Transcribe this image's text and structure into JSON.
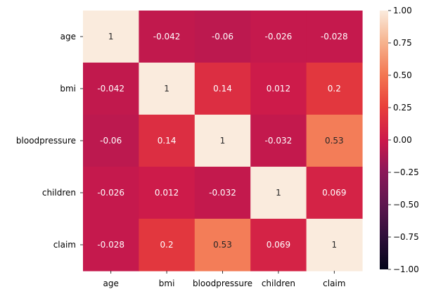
{
  "chart_data": {
    "type": "heatmap",
    "title": "",
    "xlabel": "",
    "ylabel": "",
    "x_categories": [
      "age",
      "bmi",
      "bloodpressure",
      "children",
      "claim"
    ],
    "y_categories": [
      "age",
      "bmi",
      "bloodpressure",
      "children",
      "claim"
    ],
    "values": [
      [
        1,
        -0.042,
        -0.06,
        -0.026,
        -0.028
      ],
      [
        -0.042,
        1,
        0.14,
        0.012,
        0.2
      ],
      [
        -0.06,
        0.14,
        1,
        -0.032,
        0.53
      ],
      [
        -0.026,
        0.012,
        -0.032,
        1,
        0.069
      ],
      [
        -0.028,
        0.2,
        0.53,
        0.069,
        1
      ]
    ],
    "annotations": [
      [
        "1",
        "-0.042",
        "-0.06",
        "-0.026",
        "-0.028"
      ],
      [
        "-0.042",
        "1",
        "0.14",
        "0.012",
        "0.2"
      ],
      [
        "-0.06",
        "0.14",
        "1",
        "-0.032",
        "0.53"
      ],
      [
        "-0.026",
        "0.012",
        "-0.032",
        "1",
        "0.069"
      ],
      [
        "-0.028",
        "0.2",
        "0.53",
        "0.069",
        "1"
      ]
    ],
    "colorbar": {
      "range": [
        -1,
        1
      ],
      "ticks": [
        1.0,
        0.75,
        0.5,
        0.25,
        0.0,
        -0.25,
        -0.5,
        -0.75,
        -1.0
      ],
      "tick_labels": [
        "1.00",
        "0.75",
        "0.50",
        "0.25",
        "0.00",
        "−0.25",
        "−0.50",
        "−0.75",
        "−1.00"
      ],
      "colormap": "rocket"
    }
  }
}
